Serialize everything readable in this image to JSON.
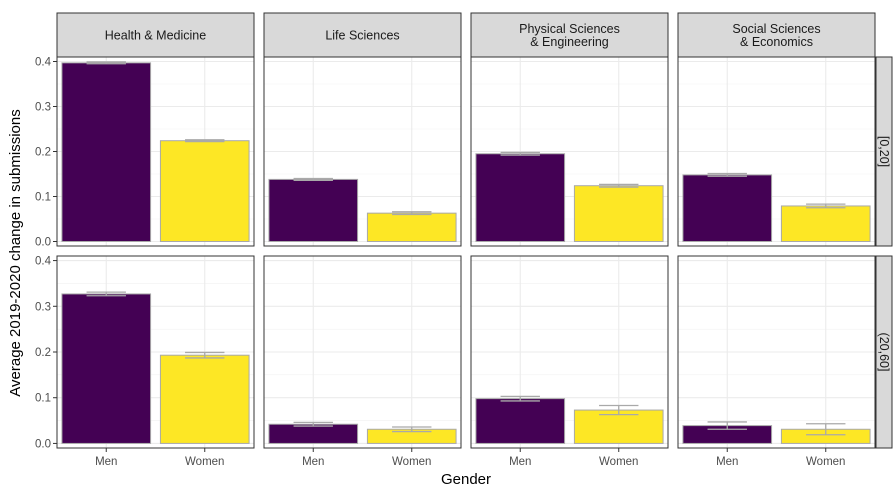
{
  "chart_data": {
    "type": "bar",
    "ylabel": "Average 2019-2020 change in submissions",
    "xlabel": "Gender",
    "categories": [
      "Men",
      "Women"
    ],
    "ylim": [
      -0.01,
      0.41
    ],
    "yticks": [
      "0.0",
      "0.1",
      "0.2",
      "0.3",
      "0.4"
    ],
    "grid": true,
    "legend": "none",
    "colors": {
      "Men": "#440154",
      "Women": "#fde725"
    },
    "columns": [
      "Health & Medicine",
      "Life Sciences",
      "Physical Sciences\n& Engineering",
      "Social Sciences\n& Economics"
    ],
    "rows": [
      "[0,20]",
      "(20,60]"
    ],
    "panels": [
      {
        "row": 0,
        "col": 0,
        "values": [
          0.397,
          0.224
        ],
        "err": [
          0.002,
          0.002
        ]
      },
      {
        "row": 0,
        "col": 1,
        "values": [
          0.138,
          0.063
        ],
        "err": [
          0.002,
          0.003
        ]
      },
      {
        "row": 0,
        "col": 2,
        "values": [
          0.195,
          0.124
        ],
        "err": [
          0.003,
          0.003
        ]
      },
      {
        "row": 0,
        "col": 3,
        "values": [
          0.148,
          0.079
        ],
        "err": [
          0.003,
          0.004
        ]
      },
      {
        "row": 1,
        "col": 0,
        "values": [
          0.327,
          0.193
        ],
        "err": [
          0.004,
          0.006
        ]
      },
      {
        "row": 1,
        "col": 1,
        "values": [
          0.042,
          0.031
        ],
        "err": [
          0.004,
          0.005
        ]
      },
      {
        "row": 1,
        "col": 2,
        "values": [
          0.098,
          0.073
        ],
        "err": [
          0.005,
          0.01
        ]
      },
      {
        "row": 1,
        "col": 3,
        "values": [
          0.039,
          0.031
        ],
        "err": [
          0.008,
          0.012
        ]
      }
    ]
  }
}
